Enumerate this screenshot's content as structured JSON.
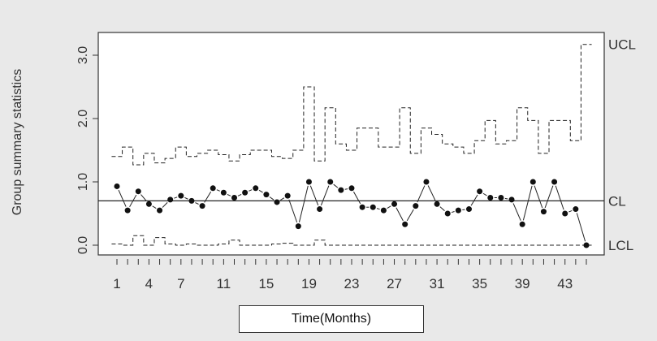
{
  "chart_data": {
    "type": "line",
    "xlabel": "Time(Months)",
    "ylabel": "Group summary statistics",
    "xlim": [
      1,
      45
    ],
    "ylim": [
      0,
      3.2
    ],
    "x_ticks": [
      1,
      2,
      3,
      4,
      5,
      6,
      7,
      8,
      9,
      10,
      11,
      12,
      13,
      14,
      15,
      16,
      17,
      18,
      19,
      20,
      21,
      22,
      23,
      24,
      25,
      26,
      27,
      28,
      29,
      30,
      31,
      32,
      33,
      34,
      35,
      36,
      37,
      38,
      39,
      40,
      41,
      42,
      43,
      44,
      45
    ],
    "x_tick_labels": [
      "1",
      "4",
      "7",
      "11",
      "15",
      "19",
      "23",
      "27",
      "31",
      "35",
      "39",
      "43"
    ],
    "x_tick_label_positions": [
      1,
      4,
      7,
      11,
      15,
      19,
      23,
      27,
      31,
      35,
      39,
      43
    ],
    "y_ticks": [
      0.0,
      1.0,
      2.0,
      3.0
    ],
    "y_tick_labels": [
      "0.0",
      "1.0",
      "2.0",
      "3.0"
    ],
    "center_line": 0.7,
    "limit_labels": {
      "ucl": "UCL",
      "cl": "CL",
      "lcl": "LCL"
    },
    "grid": false,
    "series": [
      {
        "values": [
          0.93,
          0.55,
          0.85,
          0.65,
          0.55,
          0.72,
          0.78,
          0.7,
          0.62,
          0.9,
          0.83,
          0.75,
          0.83,
          0.9,
          0.8,
          0.68,
          0.78,
          0.3,
          1.0,
          0.57,
          1.0,
          0.87,
          0.9,
          0.6,
          0.6,
          0.55,
          0.65,
          0.33,
          0.62,
          1.0,
          0.65,
          0.5,
          0.55,
          0.57,
          0.85,
          0.75,
          0.75,
          0.72,
          0.33,
          1.0,
          0.53,
          1.0,
          0.5,
          0.57,
          0.0
        ]
      },
      {
        "values": [
          1.4,
          1.55,
          1.27,
          1.45,
          1.3,
          1.37,
          1.55,
          1.4,
          1.45,
          1.5,
          1.43,
          1.33,
          1.43,
          1.5,
          1.5,
          1.4,
          1.37,
          1.5,
          2.5,
          1.33,
          2.17,
          1.6,
          1.5,
          1.85,
          1.85,
          1.55,
          1.55,
          2.17,
          1.45,
          1.85,
          1.75,
          1.6,
          1.55,
          1.45,
          1.65,
          1.97,
          1.6,
          1.65,
          2.17,
          1.97,
          1.45,
          1.97,
          1.97,
          1.65,
          3.17
        ]
      },
      {
        "values": [
          0.02,
          0.0,
          0.15,
          0.0,
          0.12,
          0.02,
          0.0,
          0.02,
          0.0,
          0.0,
          0.02,
          0.08,
          0.0,
          0.0,
          0.0,
          0.02,
          0.03,
          0.0,
          0.0,
          0.08,
          0.0,
          0.0,
          0.0,
          0.0,
          0.0,
          0.0,
          0.0,
          0.0,
          0.0,
          0.0,
          0.0,
          0.0,
          0.0,
          0.0,
          0.0,
          0.0,
          0.0,
          0.0,
          0.0,
          0.0,
          0.0,
          0.0,
          0.0,
          0.0,
          0.0
        ]
      }
    ]
  }
}
